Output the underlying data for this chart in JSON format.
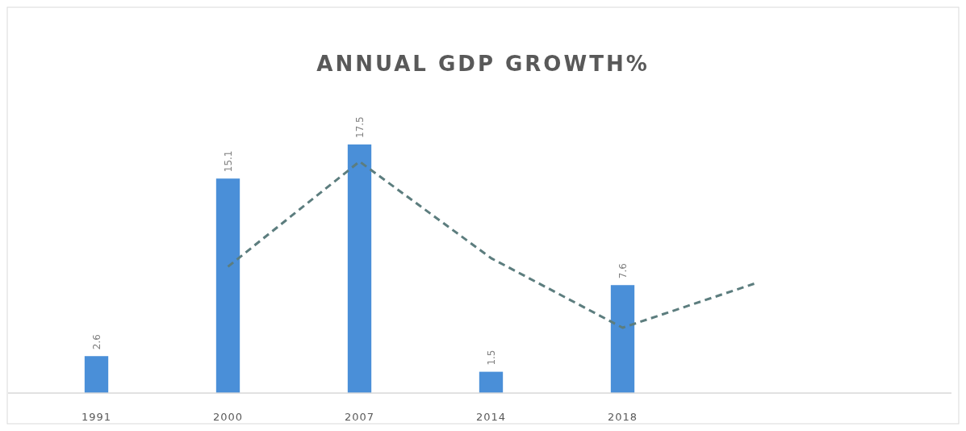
{
  "chart_data": {
    "type": "bar",
    "title": "ANNUAL GDP GROWTH%",
    "categories": [
      "1991",
      "2000",
      "2007",
      "2014",
      "2018",
      null,
      null
    ],
    "series": [
      {
        "color": "#4a8fd8",
        "values": [
          2.6,
          15.1,
          17.5,
          1.5,
          7.6,
          null,
          null
        ],
        "value_labels": [
          "2.6",
          "15.1",
          "17.5",
          "1.5",
          "7.6",
          null,
          null
        ]
      },
      {
        "type": "line",
        "color": "#5c7d7e",
        "line_style": "dashed",
        "marker": "none",
        "values": [
          null,
          8.9,
          16.3,
          9.5,
          4.6,
          7.7,
          null
        ]
      }
    ],
    "tick_labels": "x"
  }
}
